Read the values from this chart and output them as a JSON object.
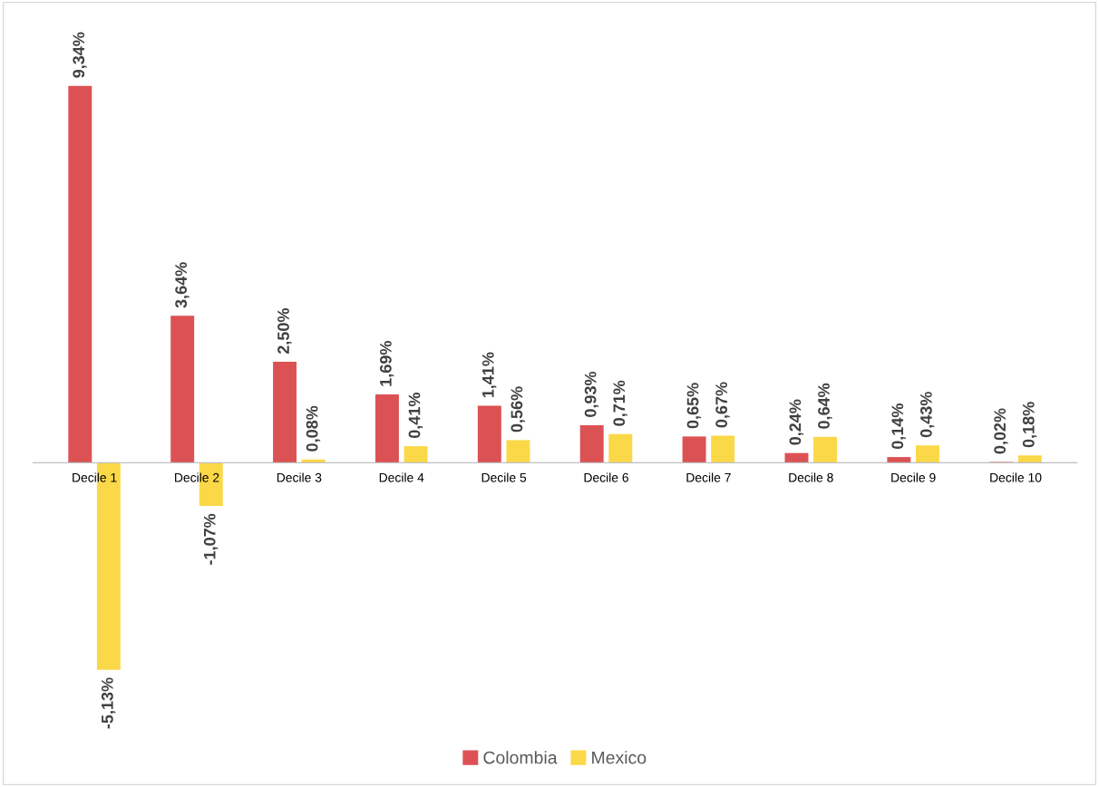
{
  "chart_data": {
    "type": "bar",
    "categories": [
      "Decile 1",
      "Decile 2",
      "Decile 3",
      "Decile 4",
      "Decile 5",
      "Decile 6",
      "Decile 7",
      "Decile 8",
      "Decile 9",
      "Decile 10"
    ],
    "series": [
      {
        "name": "Colombia",
        "color": "#dc5254",
        "values": [
          9.34,
          3.64,
          2.5,
          1.69,
          1.41,
          0.93,
          0.65,
          0.24,
          0.14,
          0.02
        ],
        "value_labels": [
          "9,34%",
          "3,64%",
          "2,50%",
          "1,69%",
          "1,41%",
          "0,93%",
          "0,65%",
          "0,24%",
          "0,14%",
          "0,02%"
        ]
      },
      {
        "name": "Mexico",
        "color": "#fbd848",
        "values": [
          -5.13,
          -1.07,
          0.08,
          0.41,
          0.56,
          0.71,
          0.67,
          0.64,
          0.43,
          0.18
        ],
        "value_labels": [
          "-5,13%",
          "-1,07%",
          "0,08%",
          "0,41%",
          "0,56%",
          "0,71%",
          "0,67%",
          "0,64%",
          "0,43%",
          "0,18%"
        ]
      }
    ],
    "legend": "bottom",
    "grid": false
  }
}
